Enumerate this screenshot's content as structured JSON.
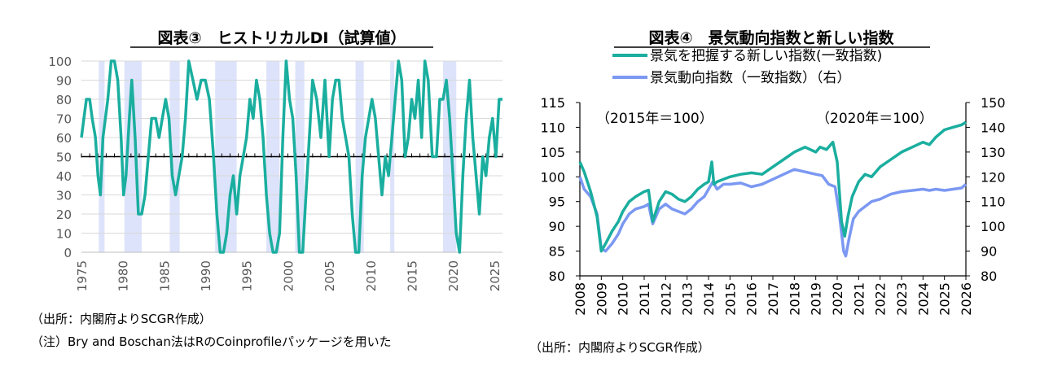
{
  "chart_data": [
    {
      "type": "line",
      "title": "図表③　ヒストリカルDI（試算値）",
      "xlim": [
        1975,
        2026
      ],
      "ylim": [
        0,
        100
      ],
      "x_ticks": [
        "1975",
        "1980",
        "1985",
        "1990",
        "1995",
        "2000",
        "2005",
        "2010",
        "2015",
        "2020",
        "2025"
      ],
      "y_ticks": [
        "0",
        "10",
        "20",
        "30",
        "40",
        "50",
        "60",
        "70",
        "80",
        "90",
        "100"
      ],
      "reference_line": 50,
      "colors": {
        "line": "#1aae9f",
        "shade": "#dde3fa",
        "ref": "#000000"
      },
      "recession_shading": [
        [
          1977.1,
          1977.8
        ],
        [
          1980.2,
          1982.3
        ],
        [
          1985.7,
          1986.9
        ],
        [
          1991.2,
          1993.8
        ],
        [
          1997.4,
          1999.0
        ],
        [
          2000.9,
          2002.0
        ],
        [
          2008.2,
          2009.2
        ],
        [
          2012.4,
          2012.9
        ],
        [
          2018.8,
          2020.4
        ]
      ],
      "series": [
        {
          "x": [
            1975.0,
            1975.3,
            1975.6,
            1976.0,
            1976.3,
            1976.7,
            1977.0,
            1977.3,
            1977.6,
            1977.9,
            1978.2,
            1978.6,
            1979.0,
            1979.4,
            1979.8,
            1980.1,
            1980.4,
            1980.8,
            1981.1,
            1981.5,
            1981.9,
            1982.3,
            1982.7,
            1983.1,
            1983.5,
            1984.0,
            1984.4,
            1984.8,
            1985.2,
            1985.6,
            1986.0,
            1986.4,
            1986.8,
            1987.2,
            1987.6,
            1988.0,
            1988.5,
            1989.0,
            1989.5,
            1990.0,
            1990.5,
            1991.0,
            1991.4,
            1991.8,
            1992.2,
            1992.6,
            1993.0,
            1993.4,
            1993.8,
            1994.2,
            1994.6,
            1995.0,
            1995.4,
            1995.8,
            1996.2,
            1996.6,
            1997.0,
            1997.4,
            1997.8,
            1998.2,
            1998.6,
            1999.0,
            1999.4,
            1999.8,
            2000.2,
            2000.6,
            2001.0,
            2001.4,
            2001.8,
            2002.2,
            2002.6,
            2003.0,
            2003.5,
            2004.0,
            2004.5,
            2005.0,
            2005.4,
            2005.8,
            2006.2,
            2006.6,
            2007.0,
            2007.4,
            2007.8,
            2008.2,
            2008.6,
            2009.0,
            2009.4,
            2009.8,
            2010.2,
            2010.6,
            2011.0,
            2011.4,
            2011.8,
            2012.2,
            2012.6,
            2013.0,
            2013.4,
            2013.8,
            2014.2,
            2014.6,
            2015.0,
            2015.4,
            2015.8,
            2016.2,
            2016.6,
            2017.0,
            2017.5,
            2018.0,
            2018.4,
            2018.8,
            2019.2,
            2019.6,
            2020.0,
            2020.4,
            2020.8,
            2021.2,
            2021.6,
            2022.0,
            2022.4,
            2022.8,
            2023.2,
            2023.6,
            2024.0,
            2024.4,
            2024.8,
            2025.2,
            2025.6,
            2026.0
          ],
          "y": [
            60,
            70,
            80,
            80,
            70,
            60,
            40,
            30,
            60,
            70,
            80,
            100,
            100,
            90,
            60,
            30,
            40,
            70,
            90,
            60,
            20,
            20,
            30,
            50,
            70,
            70,
            60,
            70,
            80,
            70,
            40,
            30,
            40,
            50,
            70,
            100,
            90,
            80,
            90,
            90,
            80,
            50,
            20,
            0,
            0,
            10,
            30,
            40,
            20,
            40,
            50,
            60,
            80,
            70,
            90,
            80,
            60,
            30,
            10,
            0,
            0,
            10,
            60,
            100,
            80,
            70,
            40,
            0,
            0,
            30,
            60,
            90,
            80,
            60,
            90,
            50,
            80,
            90,
            90,
            70,
            60,
            50,
            20,
            0,
            0,
            40,
            60,
            70,
            80,
            70,
            50,
            30,
            50,
            40,
            60,
            80,
            100,
            90,
            50,
            60,
            80,
            70,
            90,
            60,
            100,
            90,
            50,
            50,
            80,
            80,
            90,
            70,
            40,
            10,
            0,
            40,
            70,
            90,
            60,
            40,
            20,
            50,
            40,
            60,
            70,
            50,
            80,
            80
          ]
        }
      ]
    },
    {
      "type": "line",
      "title": "図表④　景気動向指数と新しい指数",
      "xlim": [
        2008,
        2026
      ],
      "ylim": [
        80,
        115
      ],
      "y2lim": [
        80,
        150
      ],
      "x_ticks": [
        "2008",
        "2009",
        "2010",
        "2011",
        "2012",
        "2013",
        "2014",
        "2015",
        "2016",
        "2017",
        "2018",
        "2019",
        "2020",
        "2021",
        "2022",
        "2023",
        "2024",
        "2025",
        "2026"
      ],
      "y_ticks": [
        "80",
        "85",
        "90",
        "95",
        "100",
        "105",
        "110",
        "115"
      ],
      "y2_ticks": [
        "80",
        "90",
        "100",
        "110",
        "120",
        "130",
        "140",
        "150"
      ],
      "annotations": [
        "（2015年＝100）",
        "（2020年＝100）"
      ],
      "series": [
        {
          "name": "景気を把握する新しい指数(一致指数)",
          "axis": "left",
          "color": "#1aae9f",
          "x": [
            2008.0,
            2008.2,
            2008.5,
            2008.8,
            2009.0,
            2009.2,
            2009.5,
            2009.8,
            2010.0,
            2010.3,
            2010.6,
            2011.0,
            2011.2,
            2011.4,
            2011.7,
            2012.0,
            2012.3,
            2012.6,
            2012.9,
            2013.2,
            2013.5,
            2013.8,
            2014.0,
            2014.15,
            2014.25,
            2014.4,
            2014.7,
            2015.0,
            2015.5,
            2016.0,
            2016.5,
            2017.0,
            2017.5,
            2018.0,
            2018.5,
            2019.0,
            2019.2,
            2019.5,
            2019.8,
            2020.0,
            2020.2,
            2020.35,
            2020.5,
            2020.7,
            2021.0,
            2021.3,
            2021.6,
            2022.0,
            2022.5,
            2023.0,
            2023.5,
            2024.0,
            2024.3,
            2024.6,
            2025.0,
            2025.4,
            2025.8,
            2026.0
          ],
          "y": [
            103,
            101,
            97,
            92,
            85,
            86.5,
            89,
            91,
            93,
            95,
            96,
            97,
            97.3,
            91,
            95,
            97,
            96.5,
            95.5,
            95,
            96,
            97.5,
            98.5,
            99,
            103,
            98.5,
            99,
            99.5,
            100,
            100.5,
            100.8,
            100.5,
            102,
            103.5,
            105,
            106,
            105,
            106,
            105.5,
            107,
            103,
            91,
            88,
            92,
            96,
            99,
            100.5,
            100,
            102,
            103.5,
            105,
            106,
            107,
            106.5,
            108,
            109.5,
            110,
            110.5,
            111
          ]
        },
        {
          "name": "景気動向指数（一致指数）（右）",
          "axis": "right",
          "color": "#7b98f2",
          "x": [
            2008.0,
            2008.2,
            2008.5,
            2008.8,
            2009.0,
            2009.2,
            2009.5,
            2009.8,
            2010.0,
            2010.3,
            2010.6,
            2011.0,
            2011.2,
            2011.4,
            2011.7,
            2012.0,
            2012.3,
            2012.6,
            2012.9,
            2013.2,
            2013.5,
            2013.8,
            2014.0,
            2014.2,
            2014.4,
            2014.7,
            2015.0,
            2015.5,
            2016.0,
            2016.5,
            2017.0,
            2017.5,
            2018.0,
            2018.5,
            2019.0,
            2019.3,
            2019.6,
            2019.9,
            2020.1,
            2020.3,
            2020.4,
            2020.55,
            2020.75,
            2021.0,
            2021.3,
            2021.6,
            2022.0,
            2022.5,
            2023.0,
            2023.5,
            2024.0,
            2024.3,
            2024.6,
            2025.0,
            2025.4,
            2025.8,
            2026.0
          ],
          "y": [
            120,
            115,
            112,
            105,
            91,
            90,
            93,
            97,
            101,
            105,
            107,
            108,
            109,
            101,
            107,
            109,
            107,
            106,
            105,
            107,
            110,
            112,
            115,
            118,
            115,
            117,
            117,
            117.5,
            116,
            117,
            119,
            121,
            123,
            122,
            121,
            120.5,
            117,
            116,
            105,
            90,
            88,
            95,
            103,
            106,
            108,
            110,
            111,
            113,
            114,
            114.5,
            115,
            114.5,
            115,
            114.5,
            115,
            115.5,
            117
          ]
        }
      ]
    }
  ],
  "notes": {
    "left_source": "（出所：内閣府よりSCGR作成）",
    "left_note": "（注）Bry and Boschan法はRのCoinprofileパッケージを用いた",
    "right_source": "（出所：内閣府よりSCGR作成）"
  }
}
